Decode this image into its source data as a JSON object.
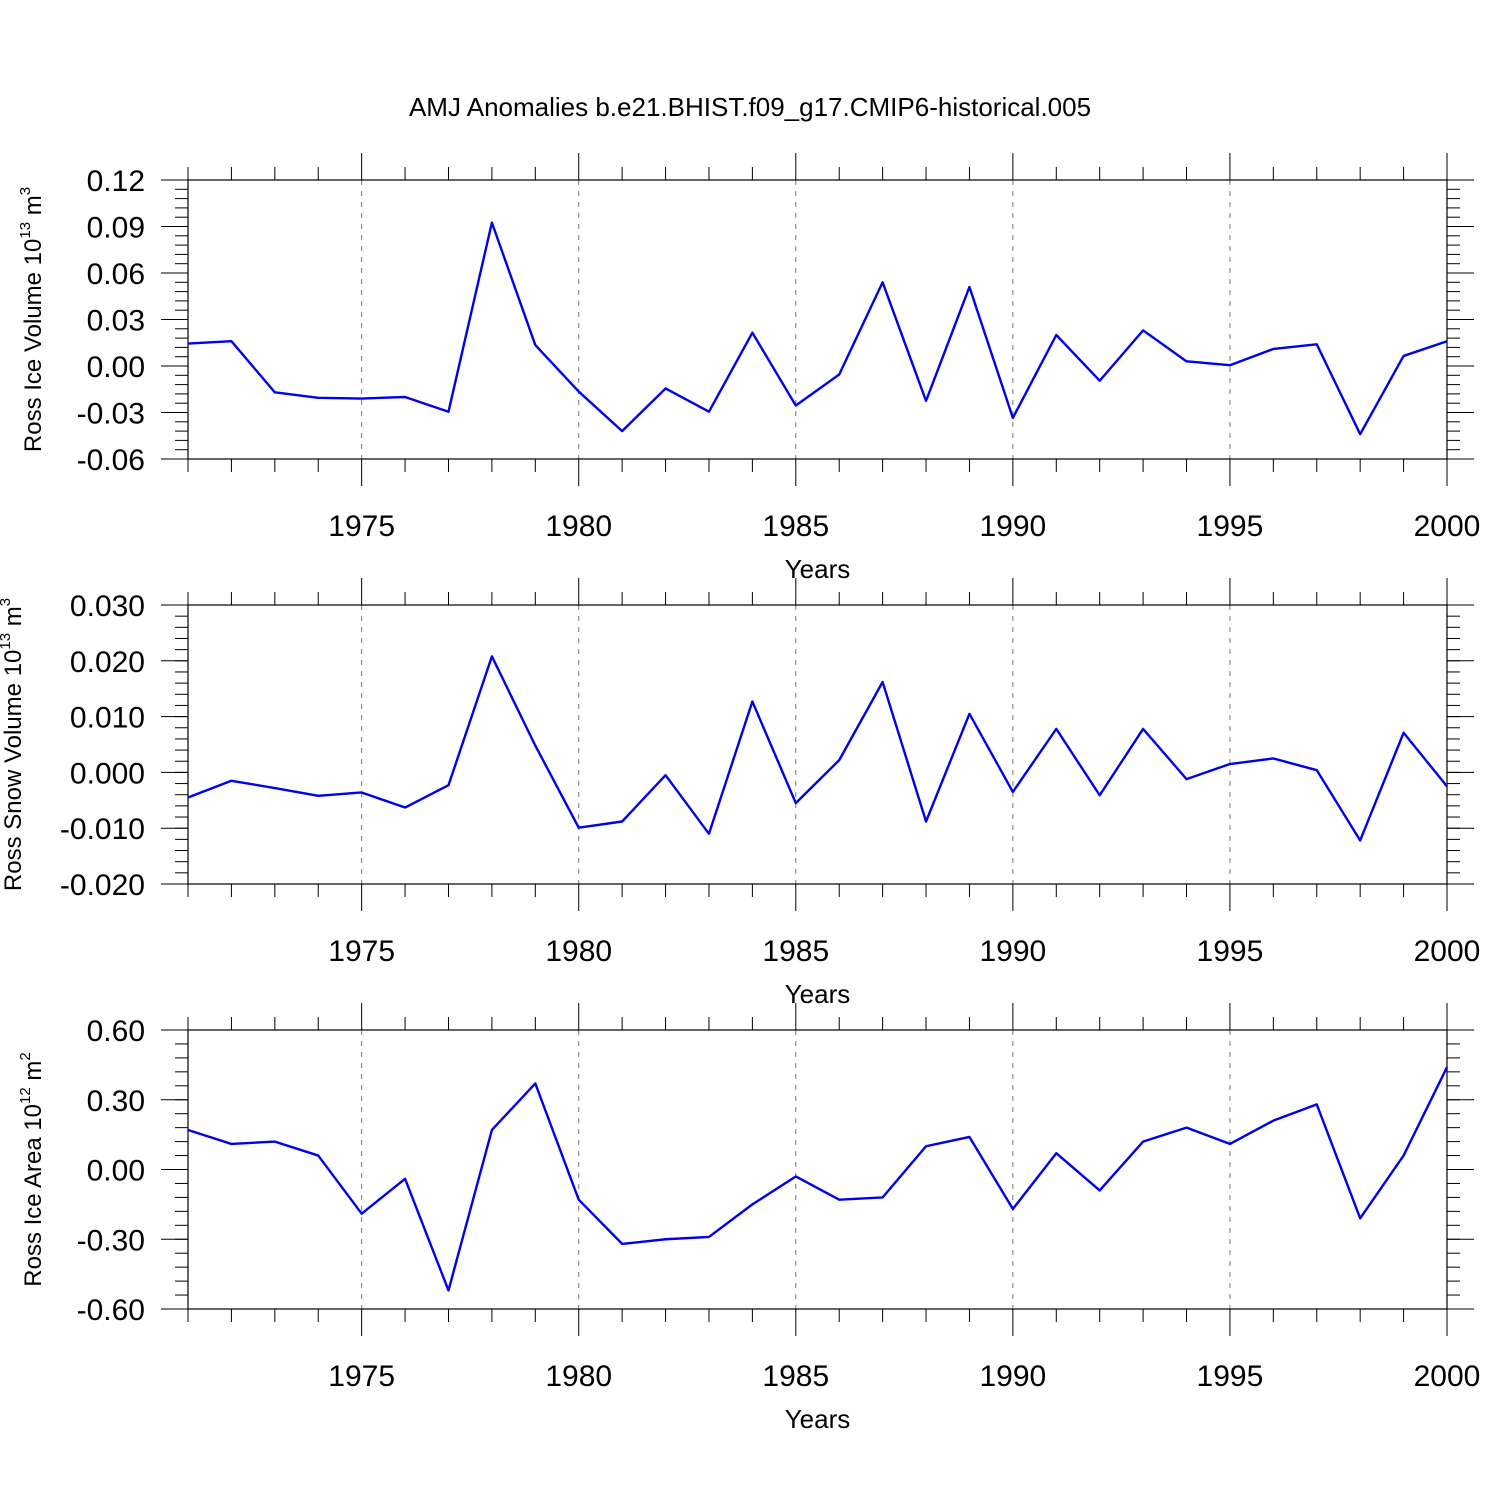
{
  "figure": {
    "title": "AMJ Anomalies b.e21.BHIST.f09_g17.CMIP6-historical.005"
  },
  "chart_data": [
    {
      "type": "line",
      "xlabel": "Years",
      "ylabel_base": "Ross Ice Volume 10",
      "ylabel_exp": "13",
      "ylabel_unit": " m",
      "ylabel_unit_exp": "3",
      "xlim": [
        1971,
        2000
      ],
      "ylim": [
        -0.06,
        0.12
      ],
      "yticks": [
        -0.06,
        -0.03,
        0.0,
        0.03,
        0.06,
        0.09,
        0.12
      ],
      "ytick_labels": [
        "-0.06",
        "-0.03",
        "0.00",
        "0.03",
        "0.06",
        "0.09",
        "0.12"
      ],
      "yminor_step": 0.006,
      "xticks": [
        1975,
        1980,
        1985,
        1990,
        1995,
        2000
      ],
      "xtick_labels": [
        "1975",
        "1980",
        "1985",
        "1990",
        "1995",
        "2000"
      ],
      "grid": "vertical-dashed",
      "line_color": "#0000ee",
      "x": [
        1971,
        1972,
        1973,
        1974,
        1975,
        1976,
        1977,
        1978,
        1979,
        1980,
        1981,
        1982,
        1983,
        1984,
        1985,
        1986,
        1987,
        1988,
        1989,
        1990,
        1991,
        1992,
        1993,
        1994,
        1995,
        1996,
        1997,
        1998,
        1999,
        2000
      ],
      "values": [
        0.0145,
        0.016,
        -0.017,
        -0.0205,
        -0.021,
        -0.02,
        -0.0295,
        0.0925,
        0.0135,
        -0.0165,
        -0.042,
        -0.0145,
        -0.0295,
        0.0215,
        -0.0255,
        -0.0055,
        0.054,
        -0.0225,
        0.051,
        -0.0335,
        0.02,
        -0.0095,
        0.023,
        0.003,
        0.0005,
        0.011,
        0.014,
        -0.044,
        0.0065,
        0.016
      ]
    },
    {
      "type": "line",
      "xlabel": "Years",
      "ylabel_base": "Ross Snow Volume 10",
      "ylabel_exp": "13",
      "ylabel_unit": " m",
      "ylabel_unit_exp": "3",
      "xlim": [
        1971,
        2000
      ],
      "ylim": [
        -0.02,
        0.03
      ],
      "yticks": [
        -0.02,
        -0.01,
        0.0,
        0.01,
        0.02,
        0.03
      ],
      "ytick_labels": [
        "-0.020",
        "-0.010",
        "0.000",
        "0.010",
        "0.020",
        "0.030"
      ],
      "yminor_step": 0.002,
      "xticks": [
        1975,
        1980,
        1985,
        1990,
        1995,
        2000
      ],
      "xtick_labels": [
        "1975",
        "1980",
        "1985",
        "1990",
        "1995",
        "2000"
      ],
      "grid": "vertical-dashed",
      "line_color": "#0000ee",
      "x": [
        1971,
        1972,
        1973,
        1974,
        1975,
        1976,
        1977,
        1978,
        1979,
        1980,
        1981,
        1982,
        1983,
        1984,
        1985,
        1986,
        1987,
        1988,
        1989,
        1990,
        1991,
        1992,
        1993,
        1994,
        1995,
        1996,
        1997,
        1998,
        1999,
        2000
      ],
      "values": [
        -0.0045,
        -0.0015,
        -0.0028,
        -0.0042,
        -0.0036,
        -0.0063,
        -0.0023,
        0.0208,
        0.0048,
        -0.0099,
        -0.0088,
        -0.0005,
        -0.011,
        0.0127,
        -0.0055,
        0.0022,
        0.0162,
        -0.0088,
        0.0105,
        -0.0035,
        0.0078,
        -0.0041,
        0.0078,
        -0.0012,
        0.0015,
        0.0025,
        0.0004,
        -0.0122,
        0.0071,
        -0.0025
      ]
    },
    {
      "type": "line",
      "xlabel": "Years",
      "ylabel_base": "Ross Ice Area 10",
      "ylabel_exp": "12",
      "ylabel_unit": " m",
      "ylabel_unit_exp": "2",
      "xlim": [
        1971,
        2000
      ],
      "ylim": [
        -0.6,
        0.6
      ],
      "yticks": [
        -0.6,
        -0.3,
        0.0,
        0.3,
        0.6
      ],
      "ytick_labels": [
        "-0.60",
        "-0.30",
        "0.00",
        "0.30",
        "0.60"
      ],
      "yminor_step": 0.06,
      "xticks": [
        1975,
        1980,
        1985,
        1990,
        1995,
        2000
      ],
      "xtick_labels": [
        "1975",
        "1980",
        "1985",
        "1990",
        "1995",
        "2000"
      ],
      "grid": "vertical-dashed",
      "line_color": "#0000ee",
      "x": [
        1971,
        1972,
        1973,
        1974,
        1975,
        1976,
        1977,
        1978,
        1979,
        1980,
        1981,
        1982,
        1983,
        1984,
        1985,
        1986,
        1987,
        1988,
        1989,
        1990,
        1991,
        1992,
        1993,
        1994,
        1995,
        1996,
        1997,
        1998,
        1999,
        2000
      ],
      "values": [
        0.17,
        0.11,
        0.12,
        0.06,
        -0.19,
        -0.04,
        -0.52,
        0.17,
        0.37,
        -0.13,
        -0.32,
        -0.3,
        -0.29,
        -0.15,
        -0.03,
        -0.13,
        -0.12,
        0.1,
        0.14,
        -0.17,
        0.07,
        -0.09,
        0.12,
        0.18,
        0.11,
        0.21,
        0.28,
        -0.21,
        0.06,
        0.44
      ]
    }
  ]
}
